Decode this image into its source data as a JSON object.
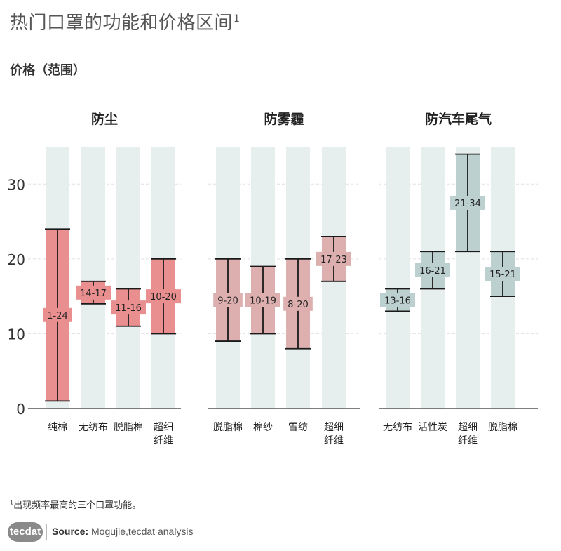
{
  "title": "热门口罩的功能和价格区间",
  "title_sup": "1",
  "subtitle": "价格（范围）",
  "footnote_sup": "1",
  "footnote": "出现频率最高的三个口罩功能。",
  "logo_text": "tecdat",
  "source_label": "Source:",
  "source_text": " Mogujie,tecdat analysis",
  "chart_data": {
    "type": "range-bar",
    "ylim": [
      0,
      35
    ],
    "yticks": [
      0,
      10,
      20,
      30
    ],
    "groups": [
      {
        "name": "防尘",
        "color": "#ea8f8f",
        "categories": [
          "纯棉",
          "无纺布",
          "脱脂棉",
          "超细纤维"
        ],
        "ranges": [
          [
            1,
            24
          ],
          [
            14,
            17
          ],
          [
            11,
            16
          ],
          [
            10,
            20
          ]
        ],
        "labels": [
          "1-24",
          "14-17",
          "11-16",
          "10-20"
        ]
      },
      {
        "name": "防雾霾",
        "color": "#deafaf",
        "categories": [
          "脱脂棉",
          "棉纱",
          "雪纺",
          "超细纤维"
        ],
        "ranges": [
          [
            9,
            20
          ],
          [
            10,
            19
          ],
          [
            8,
            20
          ],
          [
            17,
            23
          ]
        ],
        "labels": [
          "9-20",
          "10-19",
          "8-20",
          "17-23"
        ]
      },
      {
        "name": "防汽车尾气",
        "color": "#bdd0d0",
        "categories": [
          "无纺布",
          "活性炭",
          "超细纤维",
          "脱脂棉"
        ],
        "ranges": [
          [
            13,
            16
          ],
          [
            16,
            21
          ],
          [
            21,
            34
          ],
          [
            15,
            21
          ]
        ],
        "labels": [
          "13-16",
          "16-21",
          "21-34",
          "15-21"
        ]
      }
    ],
    "background_column_color": "#e7eeee",
    "grid": true
  }
}
